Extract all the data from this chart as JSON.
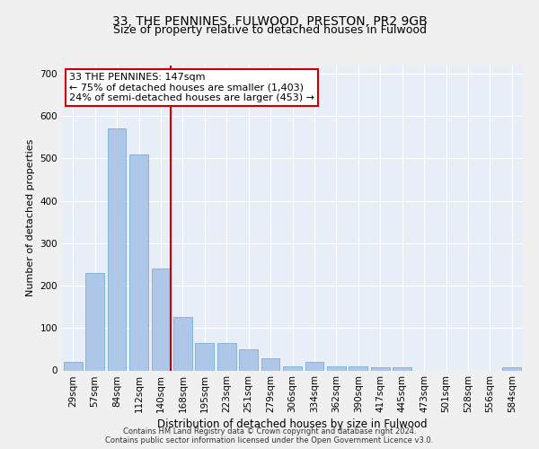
{
  "title": "33, THE PENNINES, FULWOOD, PRESTON, PR2 9GB",
  "subtitle": "Size of property relative to detached houses in Fulwood",
  "xlabel": "Distribution of detached houses by size in Fulwood",
  "ylabel": "Number of detached properties",
  "categories": [
    "29sqm",
    "57sqm",
    "84sqm",
    "112sqm",
    "140sqm",
    "168sqm",
    "195sqm",
    "223sqm",
    "251sqm",
    "279sqm",
    "306sqm",
    "334sqm",
    "362sqm",
    "390sqm",
    "417sqm",
    "445sqm",
    "473sqm",
    "501sqm",
    "528sqm",
    "556sqm",
    "584sqm"
  ],
  "values": [
    20,
    230,
    570,
    510,
    240,
    125,
    65,
    65,
    50,
    28,
    10,
    20,
    10,
    10,
    8,
    8,
    0,
    0,
    0,
    0,
    8
  ],
  "bar_color": "#aec6e8",
  "bar_edge_color": "#7bafd4",
  "vline_color": "#cc0000",
  "annotation_text": "33 THE PENNINES: 147sqm\n← 75% of detached houses are smaller (1,403)\n24% of semi-detached houses are larger (453) →",
  "annotation_box_color": "#ffffff",
  "annotation_box_edge": "#cc0000",
  "ylim": [
    0,
    720
  ],
  "yticks": [
    0,
    100,
    200,
    300,
    400,
    500,
    600,
    700
  ],
  "footer_line1": "Contains HM Land Registry data © Crown copyright and database right 2024.",
  "footer_line2": "Contains public sector information licensed under the Open Government Licence v3.0.",
  "background_color": "#e8eef7",
  "grid_color": "#ffffff",
  "title_fontsize": 10,
  "subtitle_fontsize": 9,
  "tick_fontsize": 7.5,
  "ylabel_fontsize": 8,
  "xlabel_fontsize": 8.5,
  "annotation_fontsize": 8,
  "footer_fontsize": 6
}
